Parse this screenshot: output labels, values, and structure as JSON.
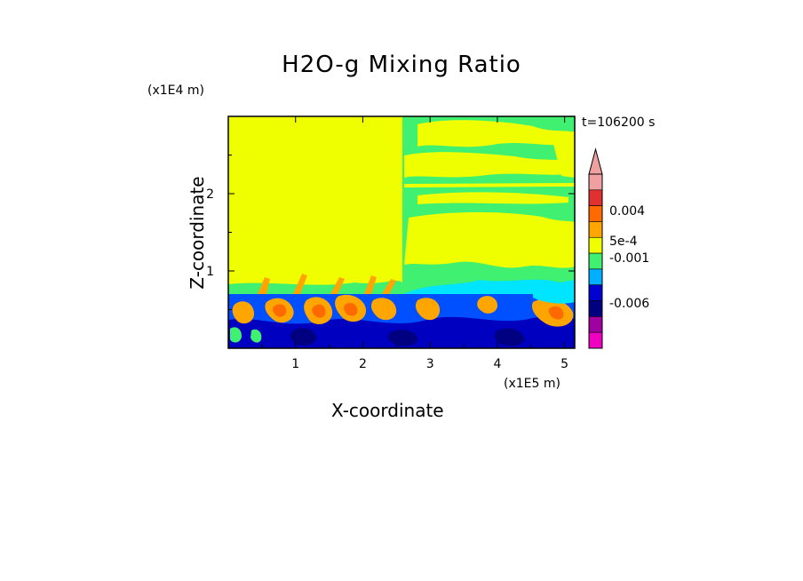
{
  "chart_data": {
    "type": "heatmap",
    "title": "H2O-g Mixing Ratio",
    "xlabel": "X-coordinate",
    "ylabel": "Z-coordinate",
    "x_unit_label": "(x1E5 m)",
    "y_unit_label": "(x1E4 m)",
    "time_label": "t=106200 s",
    "x_ticks": [
      "1",
      "2",
      "3",
      "4",
      "5"
    ],
    "x_tick_values": [
      1,
      2,
      3,
      4,
      5
    ],
    "y_ticks": [
      "1",
      "2"
    ],
    "y_tick_values": [
      1,
      2
    ],
    "xlim": [
      0,
      5.15
    ],
    "ylim": [
      0,
      3.0
    ],
    "colorbar": {
      "labels": [
        "0.004",
        "5e-4",
        "-0.001",
        "-0.006"
      ],
      "colors": [
        "#f0a0a0",
        "#e03030",
        "#ff6a00",
        "#ffa500",
        "#f0ff00",
        "#40f070",
        "#00b0ff",
        "#0000d0",
        "#000080",
        "#a000a0",
        "#f000c0"
      ],
      "extend": "max"
    }
  }
}
